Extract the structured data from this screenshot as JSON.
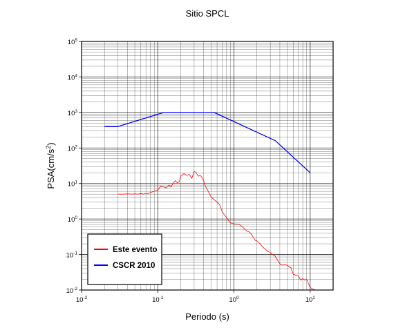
{
  "chart_data": {
    "type": "line",
    "title": "Sitio SPCL",
    "xlabel": "Periodo (s)",
    "ylabel": "PSA(cm/s",
    "ylabel_exp": "2",
    "ylabel_close": ")",
    "xscale": "log",
    "yscale": "log",
    "xlim": [
      0.01,
      20
    ],
    "ylim": [
      0.01,
      100000
    ],
    "grid": true,
    "legend_position": "bottom-left",
    "x_ticks": [
      {
        "base": "10",
        "exp": "-2",
        "value": 0.01
      },
      {
        "base": "10",
        "exp": "-1",
        "value": 0.1
      },
      {
        "base": "10",
        "exp": "0",
        "value": 1
      },
      {
        "base": "10",
        "exp": "1",
        "value": 10
      }
    ],
    "y_ticks": [
      {
        "base": "10",
        "exp": "-2",
        "value": 0.01
      },
      {
        "base": "10",
        "exp": "-1",
        "value": 0.1
      },
      {
        "base": "10",
        "exp": "0",
        "value": 1
      },
      {
        "base": "10",
        "exp": "1",
        "value": 10
      },
      {
        "base": "10",
        "exp": "2",
        "value": 100
      },
      {
        "base": "10",
        "exp": "3",
        "value": 1000
      },
      {
        "base": "10",
        "exp": "4",
        "value": 10000
      },
      {
        "base": "10",
        "exp": "5",
        "value": 100000
      }
    ],
    "series": [
      {
        "name": "Este evento",
        "color": "#ff0000",
        "x": [
          0.03,
          0.035,
          0.04,
          0.045,
          0.05,
          0.055,
          0.06,
          0.065,
          0.07,
          0.075,
          0.08,
          0.09,
          0.1,
          0.11,
          0.12,
          0.13,
          0.14,
          0.15,
          0.16,
          0.17,
          0.18,
          0.19,
          0.2,
          0.22,
          0.24,
          0.26,
          0.28,
          0.3,
          0.32,
          0.34,
          0.36,
          0.38,
          0.4,
          0.42,
          0.45,
          0.48,
          0.5,
          0.55,
          0.6,
          0.65,
          0.7,
          0.75,
          0.8,
          0.85,
          0.9,
          0.95,
          1.0,
          1.1,
          1.2,
          1.3,
          1.4,
          1.5,
          1.6,
          1.7,
          1.8,
          1.9,
          2.0,
          2.2,
          2.4,
          2.6,
          2.8,
          3.0,
          3.2,
          3.4,
          3.6,
          3.8,
          4.0,
          4.3,
          4.6,
          5.0,
          5.3,
          5.6,
          6.0,
          6.5,
          7.0,
          7.5,
          8.0,
          8.5,
          9.0,
          9.5,
          10.0,
          10.5,
          11.0,
          11.5,
          12.0
        ],
        "y": [
          5.0,
          5.0,
          5.1,
          5.0,
          5.1,
          5.0,
          5.2,
          5.0,
          5.3,
          5.2,
          5.6,
          6.0,
          6.5,
          8.5,
          8.0,
          7.5,
          9.0,
          8.0,
          10.5,
          12.0,
          10.5,
          11.0,
          16.0,
          19.0,
          17.0,
          18.0,
          14.0,
          22.0,
          20.0,
          16.0,
          17.0,
          15.0,
          12.0,
          8.5,
          6.5,
          5.0,
          4.2,
          3.5,
          3.0,
          2.5,
          1.6,
          1.3,
          1.1,
          0.9,
          0.78,
          0.75,
          0.73,
          0.72,
          0.68,
          0.6,
          0.5,
          0.45,
          0.43,
          0.37,
          0.3,
          0.25,
          0.24,
          0.2,
          0.16,
          0.14,
          0.12,
          0.115,
          0.1,
          0.095,
          0.08,
          0.065,
          0.055,
          0.05,
          0.052,
          0.05,
          0.045,
          0.042,
          0.028,
          0.026,
          0.025,
          0.019,
          0.021,
          0.019,
          0.02,
          0.015,
          0.012,
          0.011,
          0.0105,
          0.0102,
          0.01
        ]
      },
      {
        "name": "CSCR 2010",
        "color": "#0000ff",
        "x": [
          0.02,
          0.03,
          0.12,
          0.55,
          3.5,
          10.0
        ],
        "y": [
          400,
          400,
          1000,
          1000,
          160,
          20
        ]
      }
    ]
  }
}
